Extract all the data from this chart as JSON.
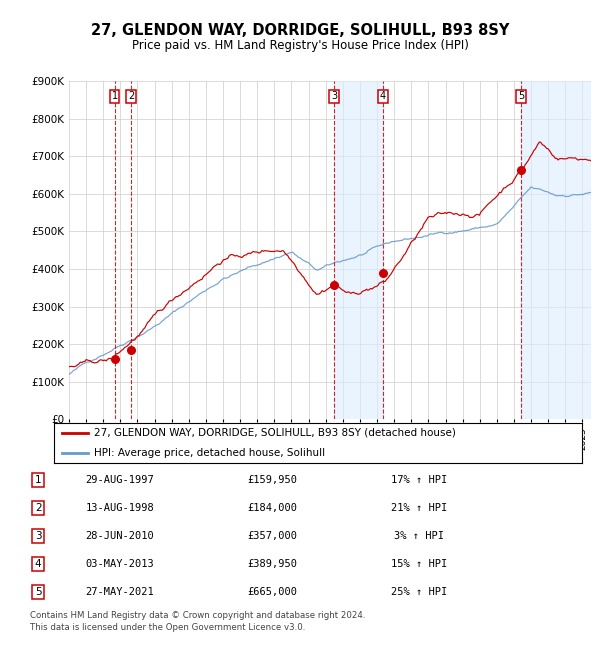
{
  "title1": "27, GLENDON WAY, DORRIDGE, SOLIHULL, B93 8SY",
  "title2": "Price paid vs. HM Land Registry's House Price Index (HPI)",
  "ylim": [
    0,
    900000
  ],
  "yticks": [
    0,
    100000,
    200000,
    300000,
    400000,
    500000,
    600000,
    700000,
    800000,
    900000
  ],
  "ytick_labels": [
    "£0",
    "£100K",
    "£200K",
    "£300K",
    "£400K",
    "£500K",
    "£600K",
    "£700K",
    "£800K",
    "£900K"
  ],
  "sales": [
    {
      "num": 1,
      "date": "29-AUG-1997",
      "year": 1997.66,
      "price": 159950,
      "pct": "17%"
    },
    {
      "num": 2,
      "date": "13-AUG-1998",
      "year": 1998.62,
      "price": 184000,
      "pct": "21%"
    },
    {
      "num": 3,
      "date": "28-JUN-2010",
      "year": 2010.49,
      "price": 357000,
      "pct": "3%"
    },
    {
      "num": 4,
      "date": "03-MAY-2013",
      "year": 2013.33,
      "price": 389950,
      "pct": "15%"
    },
    {
      "num": 5,
      "date": "27-MAY-2021",
      "year": 2021.4,
      "price": 665000,
      "pct": "25%"
    }
  ],
  "hpi_color": "#6699cc",
  "price_color": "#cc0000",
  "dashed_line_color": "#cc0000",
  "shaded_color": "#ddeeff",
  "grid_color": "#cccccc",
  "bg_color": "#ffffff",
  "legend1": "27, GLENDON WAY, DORRIDGE, SOLIHULL, B93 8SY (detached house)",
  "legend2": "HPI: Average price, detached house, Solihull",
  "footnote1": "Contains HM Land Registry data © Crown copyright and database right 2024.",
  "footnote2": "This data is licensed under the Open Government Licence v3.0.",
  "xmin": 1995.0,
  "xmax": 2025.5
}
